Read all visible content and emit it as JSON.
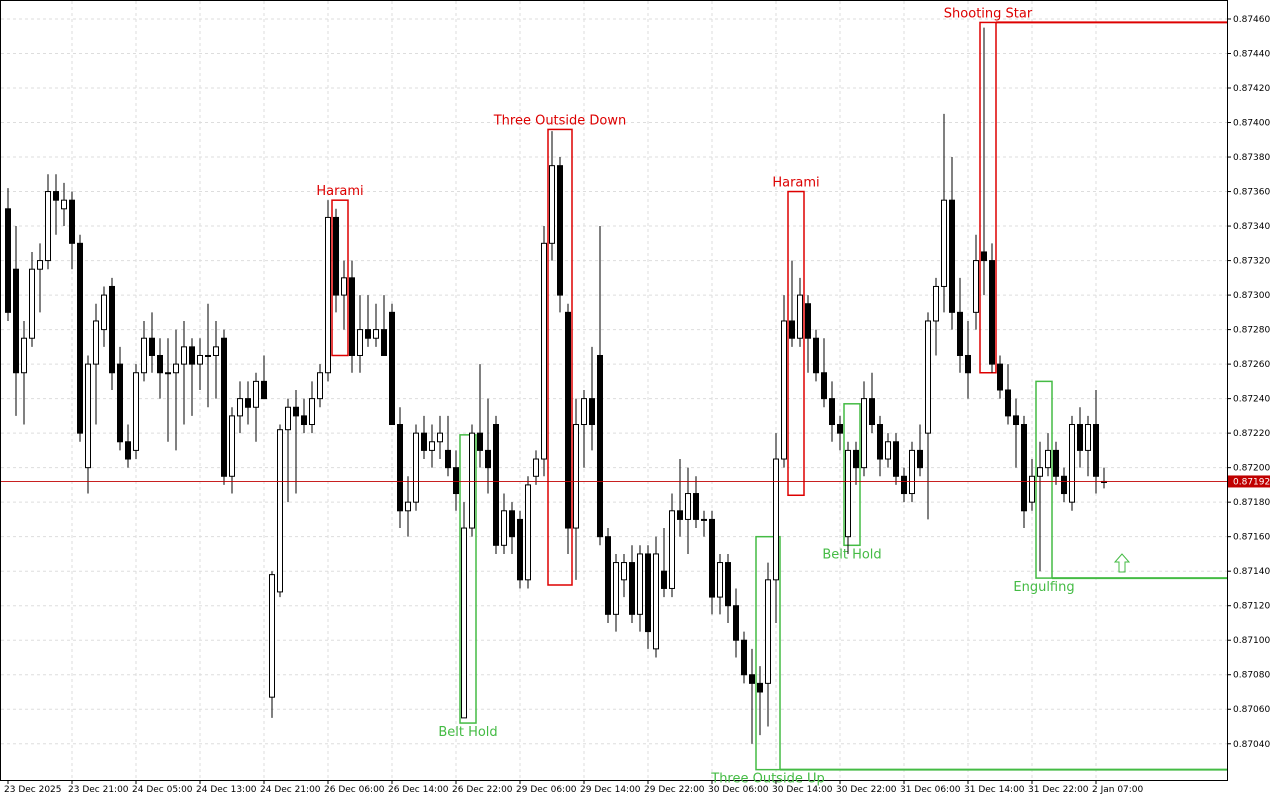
{
  "chart_data": {
    "type": "candlestick",
    "grid": true,
    "up_color": "#ffffff",
    "down_color": "#000000",
    "ylim": [
      0.87019,
      0.87471
    ],
    "yticks": [
      {
        "value": 0.8704,
        "label": "0.87040"
      },
      {
        "value": 0.8706,
        "label": "0.87060"
      },
      {
        "value": 0.8708,
        "label": "0.87080"
      },
      {
        "value": 0.871,
        "label": "0.87100"
      },
      {
        "value": 0.8712,
        "label": "0.87120"
      },
      {
        "value": 0.8714,
        "label": "0.87140"
      },
      {
        "value": 0.8716,
        "label": "0.87160"
      },
      {
        "value": 0.8718,
        "label": "0.87180"
      },
      {
        "value": 0.872,
        "label": "0.87200"
      },
      {
        "value": 0.8722,
        "label": "0.87220"
      },
      {
        "value": 0.8724,
        "label": "0.87240"
      },
      {
        "value": 0.8726,
        "label": "0.87260"
      },
      {
        "value": 0.8728,
        "label": "0.87280"
      },
      {
        "value": 0.873,
        "label": "0.87300"
      },
      {
        "value": 0.8732,
        "label": "0.87320"
      },
      {
        "value": 0.8734,
        "label": "0.87340"
      },
      {
        "value": 0.8736,
        "label": "0.87360"
      },
      {
        "value": 0.8738,
        "label": "0.87380"
      },
      {
        "value": 0.874,
        "label": "0.87400"
      },
      {
        "value": 0.8742,
        "label": "0.87420"
      },
      {
        "value": 0.8744,
        "label": "0.87440"
      },
      {
        "value": 0.8746,
        "label": "0.87460"
      }
    ],
    "xticks": [
      {
        "value": 0,
        "label": "23 Dec 2025"
      },
      {
        "value": 8,
        "label": "23 Dec 21:00"
      },
      {
        "value": 16,
        "label": "24 Dec 05:00"
      },
      {
        "value": 24,
        "label": "24 Dec 13:00"
      },
      {
        "value": 32,
        "label": "24 Dec 21:00"
      },
      {
        "value": 40,
        "label": "26 Dec 06:00"
      },
      {
        "value": 48,
        "label": "26 Dec 14:00"
      },
      {
        "value": 56,
        "label": "26 Dec 22:00"
      },
      {
        "value": 64,
        "label": "29 Dec 06:00"
      },
      {
        "value": 72,
        "label": "29 Dec 14:00"
      },
      {
        "value": 80,
        "label": "29 Dec 22:00"
      },
      {
        "value": 88,
        "label": "30 Dec 06:00"
      },
      {
        "value": 96,
        "label": "30 Dec 14:00"
      },
      {
        "value": 104,
        "label": "30 Dec 22:00"
      },
      {
        "value": 112,
        "label": "31 Dec 06:00"
      },
      {
        "value": 120,
        "label": "31 Dec 14:00"
      },
      {
        "value": 128,
        "label": "31 Dec 22:00"
      },
      {
        "value": 136,
        "label": "2 Jan 07:00"
      }
    ],
    "last_price": 0.87192,
    "last_price_color": "#c00000",
    "candles": [
      [
        0.8735,
        0.87362,
        0.87285,
        0.8729
      ],
      [
        0.87315,
        0.8734,
        0.8723,
        0.87255
      ],
      [
        0.87255,
        0.87285,
        0.87225,
        0.87275
      ],
      [
        0.87275,
        0.87325,
        0.8727,
        0.87315
      ],
      [
        0.87315,
        0.8733,
        0.8729,
        0.8732
      ],
      [
        0.8732,
        0.8737,
        0.87315,
        0.8736
      ],
      [
        0.8736,
        0.8737,
        0.87335,
        0.87355
      ],
      [
        0.8735,
        0.87365,
        0.8734,
        0.87355
      ],
      [
        0.87355,
        0.8736,
        0.87315,
        0.8733
      ],
      [
        0.8733,
        0.87335,
        0.87215,
        0.8722
      ],
      [
        0.872,
        0.87265,
        0.87185,
        0.8726
      ],
      [
        0.8726,
        0.87295,
        0.87225,
        0.87285
      ],
      [
        0.8728,
        0.87305,
        0.8727,
        0.873
      ],
      [
        0.87305,
        0.8731,
        0.87245,
        0.87255
      ],
      [
        0.8726,
        0.8727,
        0.8721,
        0.87215
      ],
      [
        0.87215,
        0.87225,
        0.872,
        0.87205
      ],
      [
        0.8721,
        0.8726,
        0.87205,
        0.87255
      ],
      [
        0.87255,
        0.87285,
        0.8725,
        0.87275
      ],
      [
        0.87275,
        0.8729,
        0.87255,
        0.87265
      ],
      [
        0.87265,
        0.87275,
        0.8724,
        0.87255
      ],
      [
        0.87255,
        0.87275,
        0.87215,
        0.87255
      ],
      [
        0.87255,
        0.8728,
        0.8721,
        0.8726
      ],
      [
        0.8726,
        0.87285,
        0.87225,
        0.8727
      ],
      [
        0.8727,
        0.87275,
        0.8723,
        0.8726
      ],
      [
        0.8726,
        0.87275,
        0.87245,
        0.87265
      ],
      [
        0.87265,
        0.87295,
        0.87235,
        0.87265
      ],
      [
        0.87265,
        0.87285,
        0.8724,
        0.8727
      ],
      [
        0.87275,
        0.8728,
        0.8719,
        0.87195
      ],
      [
        0.87195,
        0.87235,
        0.87185,
        0.8723
      ],
      [
        0.8723,
        0.8725,
        0.8722,
        0.8724
      ],
      [
        0.8724,
        0.8725,
        0.87225,
        0.87235
      ],
      [
        0.87235,
        0.87255,
        0.87215,
        0.8725
      ],
      [
        0.8725,
        0.87265,
        0.8724,
        0.8724
      ],
      [
        0.87067,
        0.8714,
        0.87055,
        0.87138
      ],
      [
        0.87128,
        0.87225,
        0.87125,
        0.87222
      ],
      [
        0.87222,
        0.8724,
        0.8718,
        0.87235
      ],
      [
        0.87235,
        0.87245,
        0.87185,
        0.8723
      ],
      [
        0.8723,
        0.8724,
        0.8722,
        0.87225
      ],
      [
        0.87225,
        0.8725,
        0.8722,
        0.8724
      ],
      [
        0.8724,
        0.8726,
        0.87235,
        0.87255
      ],
      [
        0.87255,
        0.87355,
        0.8725,
        0.87345
      ],
      [
        0.87345,
        0.8735,
        0.8729,
        0.873
      ],
      [
        0.873,
        0.8732,
        0.8728,
        0.8731
      ],
      [
        0.8731,
        0.8732,
        0.87255,
        0.87265
      ],
      [
        0.87265,
        0.873,
        0.87255,
        0.8728
      ],
      [
        0.8728,
        0.873,
        0.8727,
        0.87275
      ],
      [
        0.87275,
        0.87295,
        0.8727,
        0.8728
      ],
      [
        0.8728,
        0.873,
        0.87265,
        0.87265
      ],
      [
        0.8729,
        0.87295,
        0.87225,
        0.87225
      ],
      [
        0.87225,
        0.87235,
        0.87165,
        0.87175
      ],
      [
        0.87175,
        0.87195,
        0.8716,
        0.8718
      ],
      [
        0.8718,
        0.87225,
        0.87175,
        0.8722
      ],
      [
        0.8722,
        0.8723,
        0.87205,
        0.8721
      ],
      [
        0.8721,
        0.87225,
        0.872,
        0.87215
      ],
      [
        0.87215,
        0.8723,
        0.87205,
        0.8722
      ],
      [
        0.8721,
        0.8723,
        0.87195,
        0.872
      ],
      [
        0.872,
        0.8721,
        0.87175,
        0.87185
      ],
      [
        0.87055,
        0.8718,
        0.87055,
        0.87165
      ],
      [
        0.87165,
        0.87225,
        0.8716,
        0.8722
      ],
      [
        0.8722,
        0.8726,
        0.872,
        0.8721
      ],
      [
        0.8721,
        0.8724,
        0.87185,
        0.872
      ],
      [
        0.87225,
        0.8723,
        0.8715,
        0.87155
      ],
      [
        0.87155,
        0.87185,
        0.8715,
        0.87175
      ],
      [
        0.87175,
        0.8718,
        0.8715,
        0.8716
      ],
      [
        0.8717,
        0.87175,
        0.8713,
        0.87135
      ],
      [
        0.87135,
        0.87195,
        0.8713,
        0.8719
      ],
      [
        0.87195,
        0.8721,
        0.8719,
        0.87205
      ],
      [
        0.87205,
        0.8734,
        0.87195,
        0.8733
      ],
      [
        0.8733,
        0.87395,
        0.8732,
        0.87375
      ],
      [
        0.87375,
        0.8738,
        0.8729,
        0.873
      ],
      [
        0.8729,
        0.87295,
        0.8715,
        0.87165
      ],
      [
        0.87165,
        0.8724,
        0.87135,
        0.87225
      ],
      [
        0.87225,
        0.87245,
        0.872,
        0.8724
      ],
      [
        0.8724,
        0.8727,
        0.8721,
        0.87225
      ],
      [
        0.87265,
        0.8734,
        0.87155,
        0.8716
      ],
      [
        0.8716,
        0.87165,
        0.8711,
        0.87115
      ],
      [
        0.87115,
        0.8715,
        0.87105,
        0.87145
      ],
      [
        0.87135,
        0.8715,
        0.87125,
        0.87145
      ],
      [
        0.87145,
        0.87155,
        0.8711,
        0.87115
      ],
      [
        0.87115,
        0.87155,
        0.87105,
        0.8715
      ],
      [
        0.8715,
        0.87155,
        0.87095,
        0.87105
      ],
      [
        0.87095,
        0.8716,
        0.8709,
        0.8715
      ],
      [
        0.8714,
        0.87165,
        0.87125,
        0.8713
      ],
      [
        0.8713,
        0.87185,
        0.87125,
        0.87175
      ],
      [
        0.87175,
        0.87205,
        0.8716,
        0.8717
      ],
      [
        0.8717,
        0.872,
        0.8715,
        0.87185
      ],
      [
        0.87185,
        0.87195,
        0.87165,
        0.8717
      ],
      [
        0.8717,
        0.87175,
        0.8716,
        0.8717
      ],
      [
        0.8717,
        0.87175,
        0.87115,
        0.87125
      ],
      [
        0.87125,
        0.8715,
        0.87115,
        0.87145
      ],
      [
        0.87145,
        0.8715,
        0.8711,
        0.8712
      ],
      [
        0.8712,
        0.8713,
        0.8709,
        0.871
      ],
      [
        0.871,
        0.87105,
        0.87075,
        0.8708
      ],
      [
        0.8708,
        0.87095,
        0.8704,
        0.87075
      ],
      [
        0.87075,
        0.87085,
        0.87045,
        0.8707
      ],
      [
        0.87075,
        0.87145,
        0.8705,
        0.87135
      ],
      [
        0.87135,
        0.8722,
        0.8711,
        0.87205
      ],
      [
        0.87205,
        0.873,
        0.872,
        0.87285
      ],
      [
        0.87285,
        0.8732,
        0.8727,
        0.87275
      ],
      [
        0.87275,
        0.8731,
        0.8727,
        0.873
      ],
      [
        0.87295,
        0.873,
        0.87255,
        0.87275
      ],
      [
        0.87275,
        0.8728,
        0.8725,
        0.87255
      ],
      [
        0.87255,
        0.87275,
        0.87235,
        0.8724
      ],
      [
        0.8724,
        0.8725,
        0.87215,
        0.87225
      ],
      [
        0.87225,
        0.8723,
        0.8721,
        0.8722
      ],
      [
        0.8716,
        0.87215,
        0.8715,
        0.8721
      ],
      [
        0.8721,
        0.87215,
        0.8719,
        0.872
      ],
      [
        0.872,
        0.8725,
        0.87195,
        0.8724
      ],
      [
        0.8724,
        0.87255,
        0.8722,
        0.87225
      ],
      [
        0.87225,
        0.8723,
        0.87195,
        0.87205
      ],
      [
        0.87205,
        0.8722,
        0.872,
        0.87215
      ],
      [
        0.87215,
        0.8722,
        0.8719,
        0.87195
      ],
      [
        0.87195,
        0.872,
        0.8718,
        0.87185
      ],
      [
        0.87185,
        0.87215,
        0.8718,
        0.8721
      ],
      [
        0.8721,
        0.87225,
        0.87195,
        0.872
      ],
      [
        0.8722,
        0.8729,
        0.8717,
        0.87285
      ],
      [
        0.87285,
        0.8731,
        0.87265,
        0.87305
      ],
      [
        0.87305,
        0.87405,
        0.8729,
        0.87355
      ],
      [
        0.87355,
        0.8738,
        0.8728,
        0.8729
      ],
      [
        0.8729,
        0.8731,
        0.87255,
        0.87265
      ],
      [
        0.87265,
        0.87285,
        0.8724,
        0.87255
      ],
      [
        0.8729,
        0.87335,
        0.8728,
        0.8732
      ],
      [
        0.87325,
        0.87455,
        0.873,
        0.8732
      ],
      [
        0.8732,
        0.8733,
        0.87255,
        0.8726
      ],
      [
        0.8726,
        0.87265,
        0.8724,
        0.87245
      ],
      [
        0.87245,
        0.8726,
        0.87225,
        0.8723
      ],
      [
        0.8723,
        0.8724,
        0.872,
        0.87225
      ],
      [
        0.87225,
        0.8723,
        0.87165,
        0.87175
      ],
      [
        0.8718,
        0.87205,
        0.87175,
        0.87195
      ],
      [
        0.87195,
        0.87215,
        0.8714,
        0.872
      ],
      [
        0.872,
        0.8722,
        0.87195,
        0.8721
      ],
      [
        0.8721,
        0.87215,
        0.8719,
        0.87195
      ],
      [
        0.87195,
        0.872,
        0.8718,
        0.87185
      ],
      [
        0.8718,
        0.8723,
        0.87175,
        0.87225
      ],
      [
        0.87225,
        0.87235,
        0.872,
        0.8721
      ],
      [
        0.8721,
        0.8723,
        0.87195,
        0.87225
      ],
      [
        0.87225,
        0.87245,
        0.87185,
        0.87195
      ],
      [
        0.87192,
        0.872,
        0.87188,
        0.87192
      ]
    ],
    "patterns": [
      {
        "label": "Harami",
        "color": "#dd0000",
        "bars": [
          41,
          42
        ],
        "high": 0.87355,
        "low": 0.87265,
        "label_side": "top",
        "extend": false
      },
      {
        "label": "Three Outside Down",
        "color": "#dd0000",
        "bars": [
          68,
          70
        ],
        "high": 0.87396,
        "low": 0.87132,
        "label_side": "top",
        "extend": false
      },
      {
        "label": "Harami",
        "color": "#dd0000",
        "bars": [
          98,
          99
        ],
        "high": 0.8736,
        "low": 0.87184,
        "label_side": "top",
        "extend": false
      },
      {
        "label": "Shooting Star",
        "color": "#dd0000",
        "bars": [
          122,
          123
        ],
        "high": 0.87458,
        "low": 0.87255,
        "label_side": "top",
        "extend": true
      },
      {
        "label": "Belt Hold",
        "color": "#44bb44",
        "bars": [
          57,
          58
        ],
        "high": 0.87219,
        "low": 0.87052,
        "label_side": "bottom",
        "extend": false
      },
      {
        "label": "Three Outside Up",
        "color": "#44bb44",
        "bars": [
          94,
          96
        ],
        "high": 0.8716,
        "low": 0.87025,
        "label_side": "bottom",
        "extend": true
      },
      {
        "label": "Belt Hold",
        "color": "#44bb44",
        "bars": [
          105,
          106
        ],
        "high": 0.87237,
        "low": 0.87155,
        "label_side": "bottom",
        "extend": false
      },
      {
        "label": "Engulfing",
        "color": "#44bb44",
        "bars": [
          129,
          130
        ],
        "high": 0.8725,
        "low": 0.87136,
        "label_side": "bottom",
        "extend": true
      }
    ]
  }
}
